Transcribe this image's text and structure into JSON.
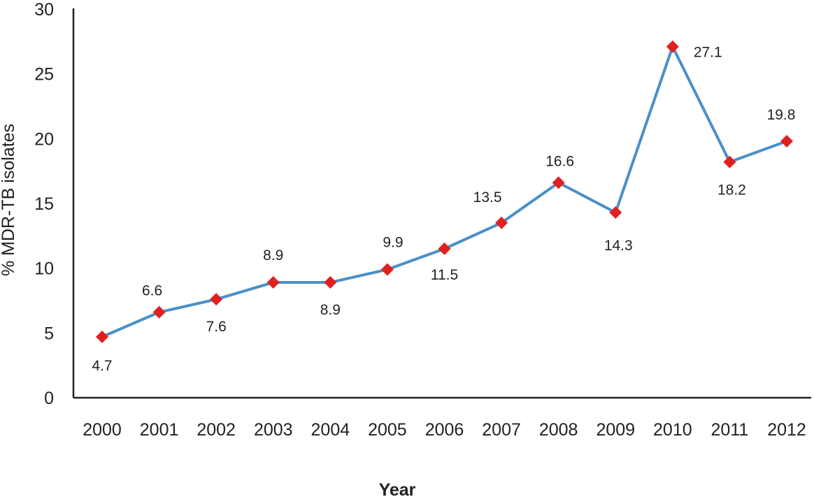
{
  "chart_data": {
    "type": "line",
    "title": "",
    "xlabel": "Year",
    "ylabel": "% MDR-TB isolates",
    "ylim": [
      0,
      30
    ],
    "yticks": [
      0,
      5,
      10,
      15,
      20,
      25,
      30
    ],
    "grid": false,
    "legend": "none",
    "categories": [
      "2000",
      "2001",
      "2002",
      "2003",
      "2004",
      "2005",
      "2006",
      "2007",
      "2008",
      "2009",
      "2010",
      "2011",
      "2012"
    ],
    "series": [
      {
        "values": [
          4.7,
          6.6,
          7.6,
          8.9,
          8.9,
          9.9,
          11.5,
          13.5,
          16.6,
          14.3,
          27.1,
          18.2,
          19.8
        ],
        "labels": [
          "4.7",
          "6.6",
          "7.6",
          "8.9",
          "8.9",
          "9.9",
          "11.5",
          "13.5",
          "16.6",
          "14.3",
          "27.1",
          "18.2",
          "19.8"
        ],
        "line_color": "#4a90c8",
        "marker": "diamond",
        "marker_color": "#e02020"
      }
    ]
  }
}
